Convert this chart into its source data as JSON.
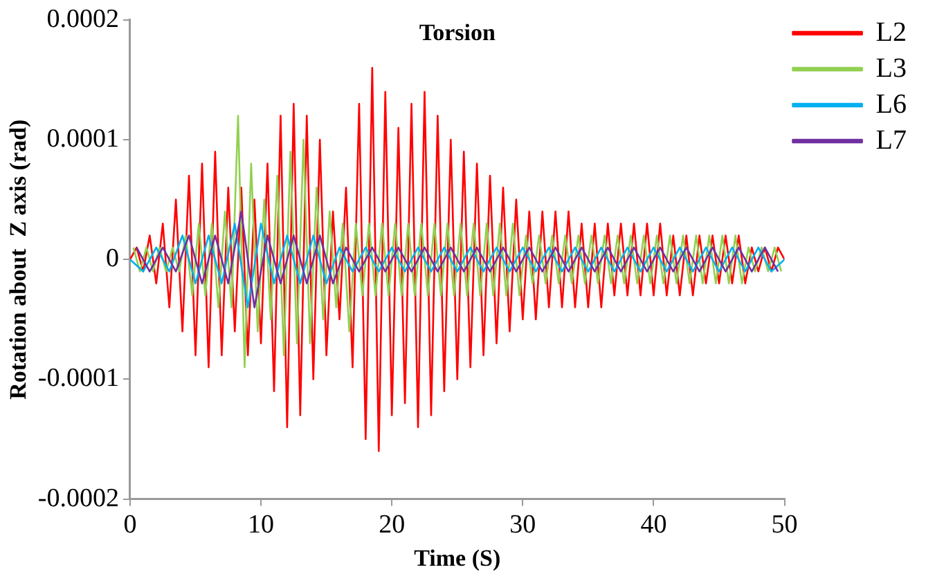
{
  "chart_data": {
    "type": "line",
    "title": "Torsion",
    "xlabel": "Time (S)",
    "ylabel": "Rotation about  Z axis (rad)",
    "xlim": [
      0,
      50
    ],
    "xticks": [
      0,
      10,
      20,
      30,
      40,
      50
    ],
    "ylim": [
      -0.0002,
      0.0002
    ],
    "yticks": [
      -0.0002,
      -0.0001,
      0,
      0.0001,
      0.0002
    ],
    "grid": false,
    "legend": "top right",
    "marker": "none",
    "line_style": "solid",
    "series": [
      {
        "name": "L2",
        "color": "#ff0000",
        "x": [
          0,
          0.5,
          1,
          1.5,
          2,
          2.5,
          3,
          3.5,
          4,
          4.5,
          5,
          5.5,
          6,
          6.5,
          7,
          7.5,
          8,
          8.5,
          9,
          9.5,
          10,
          10.5,
          11,
          11.5,
          12,
          12.5,
          13,
          13.5,
          14,
          14.5,
          15,
          15.5,
          16,
          16.5,
          17,
          17.5,
          18,
          18.5,
          19,
          19.5,
          20,
          20.5,
          21,
          21.5,
          22,
          22.5,
          23,
          23.5,
          24,
          24.5,
          25,
          25.5,
          26,
          26.5,
          27,
          27.5,
          28,
          28.5,
          29,
          29.5,
          30,
          30.5,
          31,
          31.5,
          32,
          32.5,
          33,
          33.5,
          34,
          34.5,
          35,
          35.5,
          36,
          36.5,
          37,
          37.5,
          38,
          38.5,
          39,
          39.5,
          40,
          40.5,
          41,
          41.5,
          42,
          42.5,
          43,
          43.5,
          44,
          44.5,
          45,
          45.5,
          46,
          46.5,
          47,
          47.5,
          48,
          48.5,
          49,
          49.5,
          50
        ],
        "values": [
          0,
          1e-05,
          -1e-05,
          2e-05,
          -2e-05,
          3e-05,
          -4e-05,
          5e-05,
          -6e-05,
          7e-05,
          -8e-05,
          8e-05,
          -9e-05,
          9e-05,
          -8e-05,
          6e-05,
          -6e-05,
          6e-05,
          -8e-05,
          5e-05,
          -7e-05,
          8e-05,
          -0.00011,
          0.00012,
          -0.00014,
          0.00013,
          -0.00013,
          0.00012,
          -0.0001,
          0.0001,
          -8e-05,
          4e-05,
          -5e-05,
          6e-05,
          -9e-05,
          0.00013,
          -0.00015,
          0.00016,
          -0.00016,
          0.00014,
          -0.00013,
          0.00011,
          -0.00012,
          0.00013,
          -0.00014,
          0.00014,
          -0.00013,
          0.00012,
          -0.00011,
          0.0001,
          -0.0001,
          9e-05,
          -9e-05,
          8e-05,
          -8e-05,
          7e-05,
          -7e-05,
          6e-05,
          -6e-05,
          5e-05,
          -5e-05,
          4e-05,
          -5e-05,
          4e-05,
          -4e-05,
          4e-05,
          -4e-05,
          4e-05,
          -4e-05,
          3e-05,
          -4e-05,
          3e-05,
          -4e-05,
          3e-05,
          -3e-05,
          3e-05,
          -3e-05,
          3e-05,
          -3e-05,
          3e-05,
          -3e-05,
          3e-05,
          -3e-05,
          2e-05,
          -3e-05,
          2e-05,
          -3e-05,
          2e-05,
          -2e-05,
          2e-05,
          -2e-05,
          2e-05,
          -2e-05,
          2e-05,
          -2e-05,
          1e-05,
          -1e-05,
          1e-05,
          -1e-05,
          1e-05,
          0
        ]
      },
      {
        "name": "L3",
        "color": "#92d050",
        "x": [
          0.25,
          0.75,
          1.25,
          1.75,
          2.25,
          2.75,
          3.25,
          3.75,
          4.25,
          4.75,
          5.25,
          5.75,
          6.25,
          6.75,
          7.25,
          7.75,
          8.25,
          8.75,
          9.25,
          9.75,
          10.25,
          10.75,
          11.25,
          11.75,
          12.25,
          12.75,
          13.25,
          13.75,
          14.25,
          14.75,
          15.25,
          15.75,
          16.25,
          16.75,
          17.25,
          17.75,
          18.25,
          18.75,
          19.25,
          19.75,
          20.25,
          20.75,
          21.25,
          21.75,
          22.25,
          22.75,
          23.25,
          23.75,
          24.25,
          24.75,
          25.25,
          25.75,
          26.25,
          26.75,
          27.25,
          27.75,
          28.25,
          28.75,
          29.25,
          29.75,
          30.25,
          30.75,
          31.25,
          31.75,
          32.25,
          32.75,
          33.25,
          33.75,
          34.25,
          34.75,
          35.25,
          35.75,
          36.25,
          36.75,
          37.25,
          37.75,
          38.25,
          38.75,
          39.25,
          39.75,
          40.25,
          40.75,
          41.25,
          41.75,
          42.25,
          42.75,
          43.25,
          43.75,
          44.25,
          44.75,
          45.25,
          45.75,
          46.25,
          46.75,
          47.25,
          47.75,
          48.25,
          48.75,
          49.25,
          49.75
        ],
        "values": [
          1e-05,
          -1e-05,
          1e-05,
          -1e-05,
          1e-05,
          -1e-05,
          1e-05,
          -1e-05,
          2e-05,
          -3e-05,
          3e-05,
          -3e-05,
          3e-05,
          -4e-05,
          4e-05,
          -4e-05,
          0.00012,
          -9e-05,
          8e-05,
          -6e-05,
          5e-05,
          -5e-05,
          7e-05,
          -8e-05,
          9e-05,
          -7e-05,
          0.0001,
          -7e-05,
          6e-05,
          -5e-05,
          4e-05,
          -4e-05,
          3e-05,
          -6e-05,
          3e-05,
          -3e-05,
          3e-05,
          -3e-05,
          3e-05,
          -3e-05,
          3e-05,
          -3e-05,
          3e-05,
          -3e-05,
          3e-05,
          -3e-05,
          3e-05,
          -3e-05,
          3e-05,
          -3e-05,
          3e-05,
          -3e-05,
          3e-05,
          -3e-05,
          3e-05,
          -3e-05,
          3e-05,
          -3e-05,
          3e-05,
          -3e-05,
          2e-05,
          -2e-05,
          2e-05,
          -2e-05,
          2e-05,
          -2e-05,
          2e-05,
          -2e-05,
          2e-05,
          -2e-05,
          2e-05,
          -2e-05,
          2e-05,
          -2e-05,
          2e-05,
          -2e-05,
          2e-05,
          -2e-05,
          2e-05,
          -2e-05,
          2e-05,
          -2e-05,
          2e-05,
          -2e-05,
          2e-05,
          -2e-05,
          2e-05,
          -2e-05,
          2e-05,
          -2e-05,
          2e-05,
          -2e-05,
          2e-05,
          -2e-05,
          1e-05,
          -1e-05,
          1e-05,
          -1e-05,
          1e-05,
          -1e-05
        ]
      },
      {
        "name": "L6",
        "color": "#00b0f0",
        "x": [
          0,
          1,
          2,
          3,
          4,
          5,
          6,
          7,
          8,
          9,
          10,
          11,
          12,
          13,
          14,
          15,
          16,
          17,
          18,
          19,
          20,
          21,
          22,
          23,
          24,
          25,
          26,
          27,
          28,
          29,
          30,
          31,
          32,
          33,
          34,
          35,
          36,
          37,
          38,
          39,
          40,
          41,
          42,
          43,
          44,
          45,
          46,
          47,
          48,
          49,
          50
        ],
        "values": [
          0,
          -1e-05,
          1e-05,
          -1e-05,
          2e-05,
          -2e-05,
          2e-05,
          -2e-05,
          3e-05,
          -4e-05,
          3e-05,
          -2e-05,
          2e-05,
          -2e-05,
          2e-05,
          -2e-05,
          1e-05,
          -1e-05,
          1e-05,
          -1e-05,
          1e-05,
          -1e-05,
          1e-05,
          -1e-05,
          1e-05,
          -1e-05,
          1e-05,
          -1e-05,
          1e-05,
          -1e-05,
          1e-05,
          -1e-05,
          1e-05,
          -1e-05,
          1e-05,
          -1e-05,
          1e-05,
          -1e-05,
          1e-05,
          -1e-05,
          1e-05,
          -1e-05,
          1e-05,
          -1e-05,
          1e-05,
          -1e-05,
          1e-05,
          -1e-05,
          1e-05,
          -1e-05,
          0
        ]
      },
      {
        "name": "L7",
        "color": "#7030a0",
        "x": [
          0.5,
          1.5,
          2.5,
          3.5,
          4.5,
          5.5,
          6.5,
          7.5,
          8.5,
          9.5,
          10.5,
          11.5,
          12.5,
          13.5,
          14.5,
          15.5,
          16.5,
          17.5,
          18.5,
          19.5,
          20.5,
          21.5,
          22.5,
          23.5,
          24.5,
          25.5,
          26.5,
          27.5,
          28.5,
          29.5,
          30.5,
          31.5,
          32.5,
          33.5,
          34.5,
          35.5,
          36.5,
          37.5,
          38.5,
          39.5,
          40.5,
          41.5,
          42.5,
          43.5,
          44.5,
          45.5,
          46.5,
          47.5,
          48.5,
          49.5
        ],
        "values": [
          1e-05,
          -1e-05,
          1e-05,
          -1e-05,
          2e-05,
          -2e-05,
          2e-05,
          -2e-05,
          4e-05,
          -4e-05,
          2e-05,
          -2e-05,
          2e-05,
          -2e-05,
          2e-05,
          -2e-05,
          1e-05,
          -1e-05,
          1e-05,
          -1e-05,
          1e-05,
          -1e-05,
          1e-05,
          -1e-05,
          1e-05,
          -1e-05,
          1e-05,
          -1e-05,
          1e-05,
          -1e-05,
          1e-05,
          -1e-05,
          1e-05,
          -1e-05,
          1e-05,
          -1e-05,
          1e-05,
          -1e-05,
          1e-05,
          -1e-05,
          1e-05,
          -1e-05,
          1e-05,
          -1e-05,
          1e-05,
          -1e-05,
          1e-05,
          -1e-05,
          1e-05,
          -1e-05
        ]
      }
    ]
  }
}
